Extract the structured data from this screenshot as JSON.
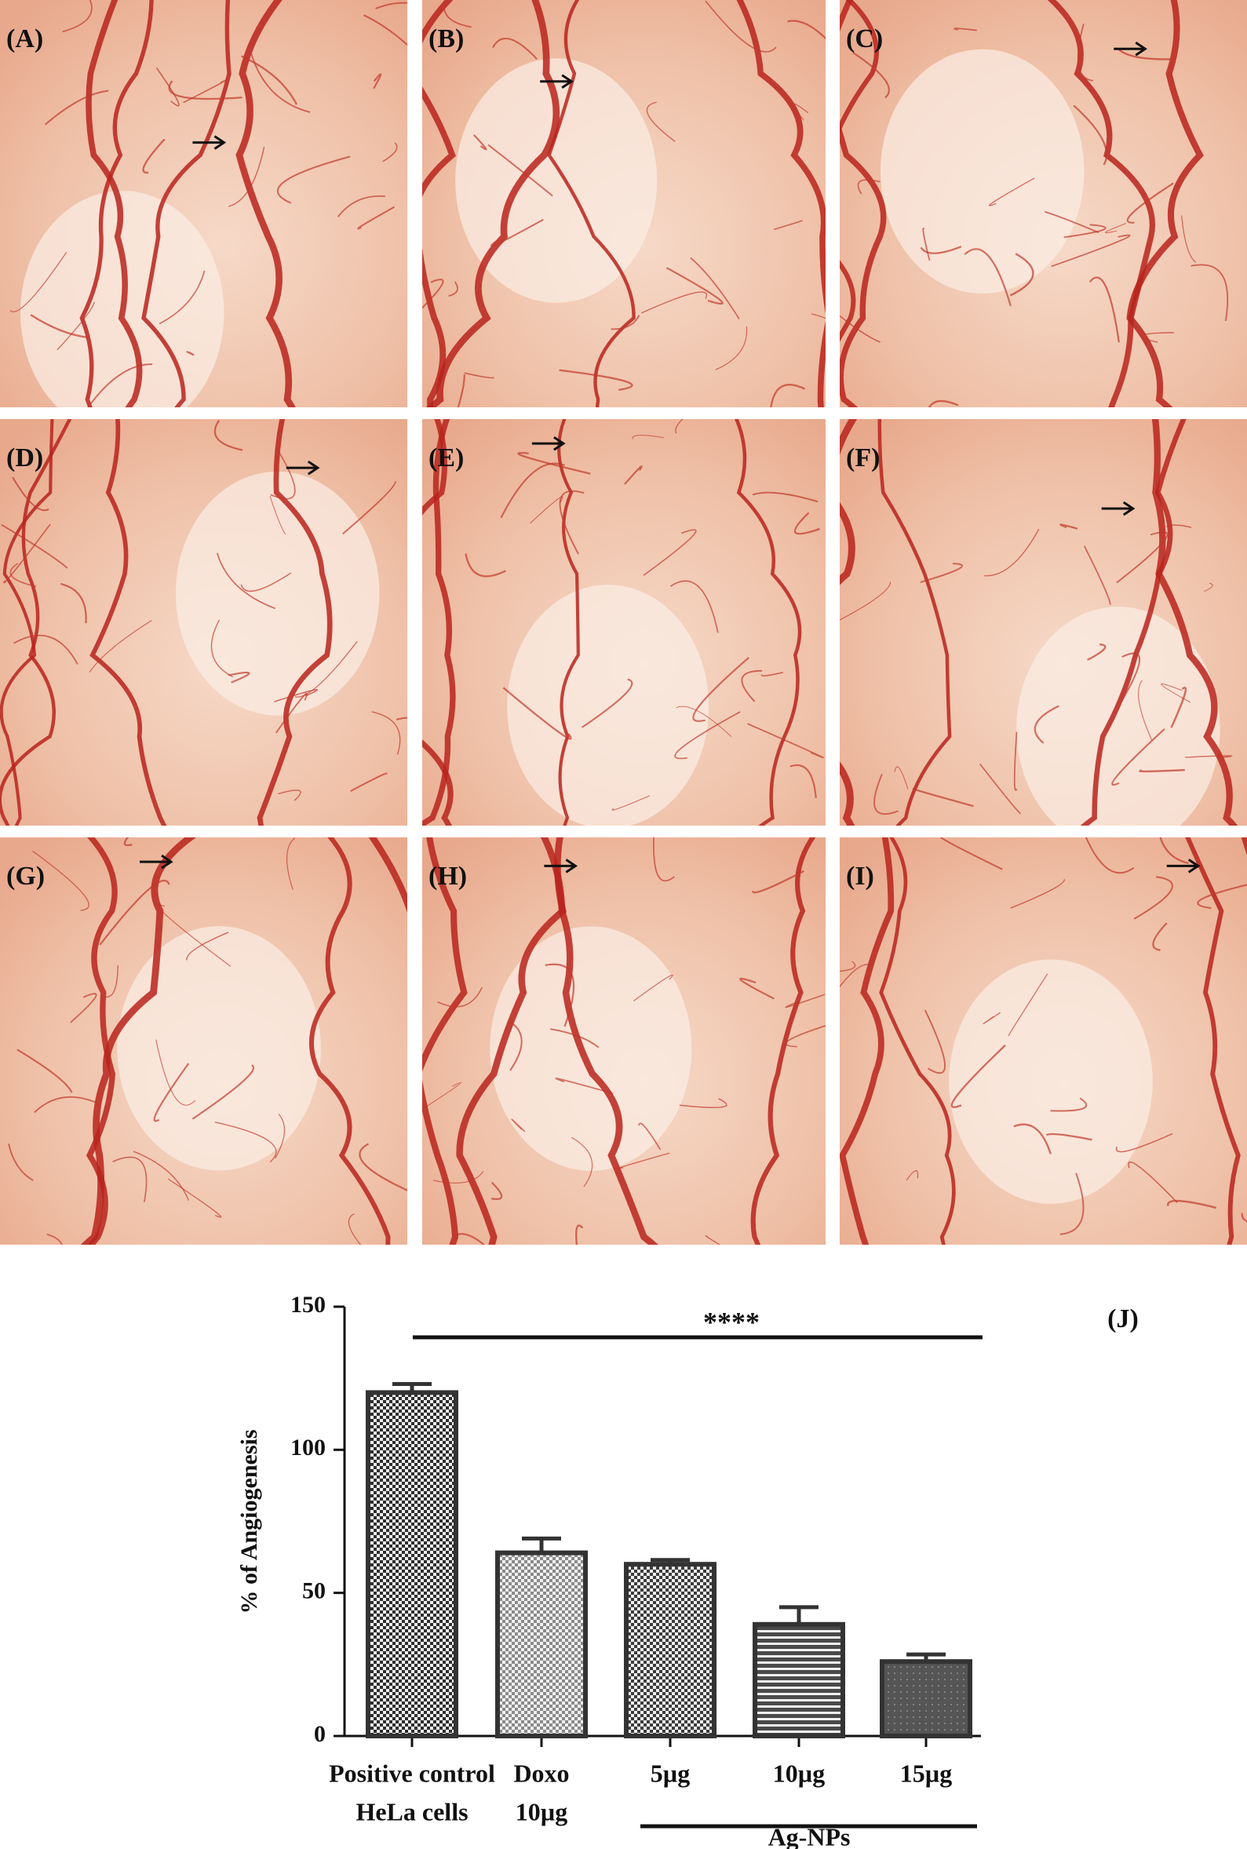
{
  "photo_panels": [
    "(A)",
    "(B)",
    "(C)",
    "(D)",
    "(E)",
    "(F)",
    "(G)",
    "(H)",
    "(I)"
  ],
  "chart_data": {
    "type": "bar",
    "panel_label": "(J)",
    "ylabel": "% of Angiogenesis",
    "categories": [
      [
        "Positive control",
        "HeLa cells"
      ],
      [
        "Doxo",
        "10µg"
      ],
      [
        "5µg"
      ],
      [
        "10µg"
      ],
      [
        "15µg"
      ]
    ],
    "values": [
      120,
      64,
      60,
      39,
      26
    ],
    "errors": [
      3,
      5,
      1.5,
      6,
      2.5
    ],
    "colors": [
      "#2e2e2e",
      "#8a8a8a",
      "#3c3c3c",
      "#4a4a4a",
      "#555555"
    ],
    "significance": "****",
    "group_label": "Ag-NPs",
    "ylim": [
      0,
      150
    ],
    "yticks": [
      0,
      50,
      100,
      150
    ]
  }
}
